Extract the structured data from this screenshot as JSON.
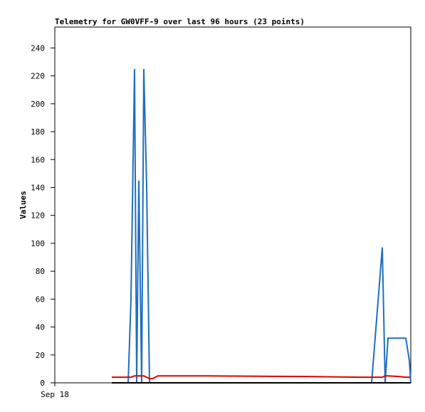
{
  "chart_data": {
    "type": "line",
    "title": "Telemetry for GW0VFF-9 over last 96 hours (23 points)",
    "y_label": "Values",
    "x": [
      15.36,
      19.78,
      20.54,
      21.5,
      22.08,
      22.66,
      23.42,
      24.0,
      24.77,
      25.54,
      26.3,
      27.84,
      40.9,
      67.78,
      82.18,
      85.44,
      88.32,
      89.09,
      89.86,
      92.74,
      94.66,
      95.62,
      96.0
    ],
    "series": [
      {
        "color": "#1f6fbf",
        "values": [
          0,
          0,
          60,
          225,
          0,
          145,
          0,
          225,
          140,
          0,
          0,
          0,
          0,
          0,
          0,
          0,
          97,
          0,
          32,
          32,
          32,
          16,
          0
        ]
      },
      {
        "color": "#e00000",
        "values": [
          4,
          4,
          4,
          5,
          5,
          5,
          5,
          5,
          4,
          3,
          3,
          5,
          5,
          4.5,
          4,
          4,
          4,
          5,
          5,
          4.5,
          4,
          4,
          3.5
        ]
      },
      {
        "color": "#000000",
        "values": [
          0,
          0,
          0,
          0,
          0,
          0,
          0,
          0,
          0,
          0,
          0,
          0,
          0,
          0,
          0,
          0,
          0,
          0,
          0,
          0,
          0,
          0,
          0
        ]
      }
    ],
    "xlim": [
      0,
      96
    ],
    "xticks": [
      {
        "value": 0,
        "label": "Sep 18"
      }
    ],
    "ylim": [
      0,
      255
    ],
    "yticks": [
      0,
      20,
      40,
      60,
      80,
      100,
      120,
      140,
      160,
      180,
      200,
      220,
      240
    ]
  }
}
